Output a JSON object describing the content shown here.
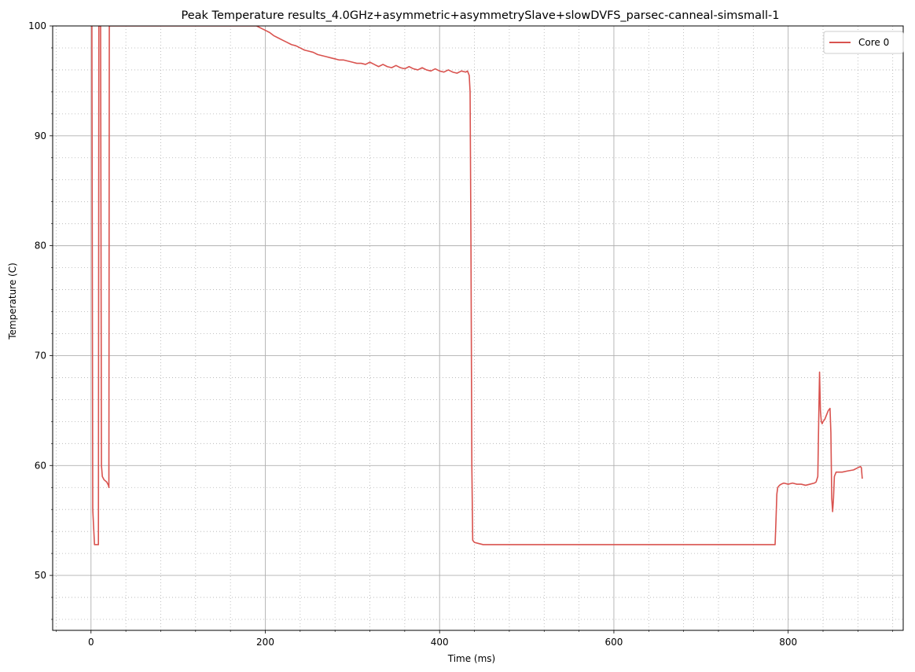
{
  "chart_data": {
    "type": "line",
    "title": "Peak Temperature results_4.0GHz+asymmetric+asymmetrySlave+slowDVFS_parsec-canneal-simsmall-1",
    "xlabel": "Time (ms)",
    "ylabel": "Temperature (C)",
    "xlim": [
      -44,
      932
    ],
    "ylim": [
      45,
      100
    ],
    "xticks": [
      0,
      200,
      400,
      600,
      800
    ],
    "yticks": [
      50,
      60,
      70,
      80,
      90,
      100
    ],
    "grid": true,
    "minor_grid": true,
    "legend_position": "top-right",
    "series": [
      {
        "name": "Core 0",
        "color": "#d9534f",
        "x": [
          0,
          1,
          2,
          4,
          6,
          8,
          8.5,
          9,
          10,
          11,
          12,
          13,
          15,
          18,
          20,
          20.5,
          21,
          22,
          30,
          60,
          100,
          150,
          185,
          190,
          195,
          200,
          205,
          210,
          215,
          220,
          225,
          230,
          235,
          240,
          245,
          250,
          255,
          260,
          265,
          270,
          275,
          280,
          285,
          290,
          295,
          300,
          305,
          310,
          315,
          320,
          325,
          330,
          335,
          340,
          345,
          350,
          355,
          360,
          365,
          370,
          375,
          380,
          385,
          390,
          395,
          400,
          405,
          410,
          415,
          420,
          425,
          430,
          432,
          434,
          435,
          436,
          437,
          438,
          440,
          445,
          450,
          500,
          600,
          700,
          785,
          786,
          787,
          788,
          790,
          792,
          795,
          800,
          805,
          810,
          815,
          820,
          825,
          830,
          832,
          834,
          835,
          836,
          837,
          838,
          839,
          840,
          842,
          844,
          846,
          848,
          849,
          850,
          851,
          852,
          853,
          855,
          858,
          862,
          868,
          875,
          880,
          883,
          884,
          885
        ],
        "y": [
          100,
          100,
          56,
          52.8,
          52.8,
          52.8,
          52.8,
          100,
          100,
          100,
          60,
          59,
          58.7,
          58.5,
          58.2,
          58,
          100,
          100,
          100,
          100,
          100,
          100,
          100,
          100,
          99.8,
          99.6,
          99.4,
          99.1,
          98.9,
          98.7,
          98.5,
          98.3,
          98.2,
          98,
          97.8,
          97.7,
          97.6,
          97.4,
          97.3,
          97.2,
          97.1,
          97,
          96.9,
          96.9,
          96.8,
          96.7,
          96.6,
          96.6,
          96.5,
          96.7,
          96.5,
          96.3,
          96.5,
          96.3,
          96.2,
          96.4,
          96.2,
          96.1,
          96.3,
          96.1,
          96,
          96.2,
          96,
          95.9,
          96.1,
          95.9,
          95.8,
          96,
          95.8,
          95.7,
          95.9,
          95.8,
          95.9,
          95.5,
          94,
          80,
          60,
          53.2,
          53,
          52.9,
          52.8,
          52.8,
          52.8,
          52.8,
          52.8,
          55,
          57.4,
          58,
          58.2,
          58.3,
          58.4,
          58.3,
          58.4,
          58.3,
          58.3,
          58.2,
          58.3,
          58.4,
          58.5,
          59,
          64,
          68.5,
          65,
          64,
          63.8,
          64,
          64.2,
          64.6,
          65,
          65.2,
          63,
          57,
          55.8,
          57,
          59,
          59.4,
          59.4,
          59.4,
          59.5,
          59.6,
          59.8,
          59.9,
          59.8,
          58.8
        ]
      }
    ]
  }
}
